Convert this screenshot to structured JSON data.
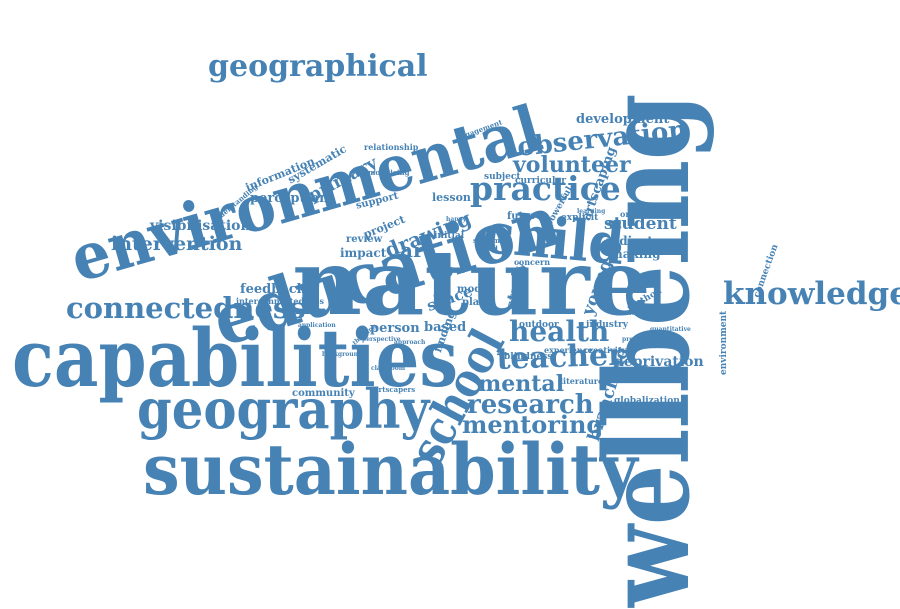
{
  "color": "#4682b4",
  "words": [
    "wellbeing",
    "environmental",
    "education",
    "nature",
    "capabilities",
    "sustainability",
    "geography",
    "school",
    "child",
    "knowledge",
    "geographical",
    "connectedness",
    "practice",
    "observation",
    "teacher",
    "health",
    "research",
    "mentoring",
    "mental",
    "volunteer",
    "intervention",
    "visibilisation",
    "development",
    "branching",
    "deprivation",
    "drawing",
    "art",
    "student",
    "indicator",
    "making",
    "perception",
    "primary",
    "information",
    "systematic",
    "feedback",
    "interconnectedness",
    "community",
    "person",
    "based",
    "review",
    "impact",
    "space",
    "lesson",
    "project",
    "support",
    "subject",
    "curricular",
    "artscaping",
    "young",
    "study",
    "finding",
    "powerful",
    "future",
    "explicit",
    "initial",
    "model",
    "place",
    "blindness",
    "experience",
    "industry",
    "creativity",
    "literature",
    "globalization",
    "environment",
    "connection",
    "outdoor",
    "organisation",
    "method",
    "quantitative",
    "relationship",
    "engagement",
    "mobilising",
    "understanding",
    "artscapers",
    "background",
    "classroom",
    "thinking",
    "perspective",
    "approach",
    "positive",
    "concern",
    "learning",
    "system",
    "world",
    "happy",
    "evidence",
    "production",
    "application"
  ]
}
